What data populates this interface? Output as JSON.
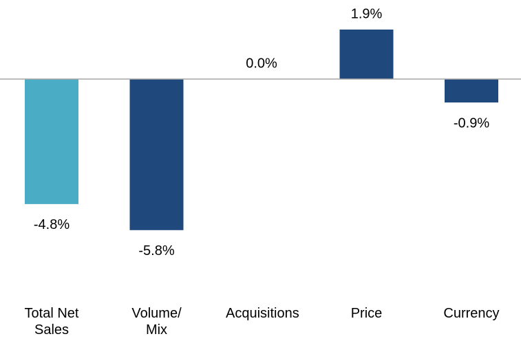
{
  "chart_data": {
    "type": "bar",
    "categories": [
      "Total Net Sales",
      "Volume/ Mix",
      "Acquisitions",
      "Price",
      "Currency"
    ],
    "values": [
      -4.8,
      -5.8,
      0.0,
      1.9,
      -0.9
    ],
    "value_labels": [
      "-4.8%",
      "-5.8%",
      "0.0%",
      "1.9%",
      "-0.9%"
    ],
    "colors": [
      "#4bacc6",
      "#1f497d",
      "#1f497d",
      "#1f497d",
      "#1f497d"
    ]
  }
}
